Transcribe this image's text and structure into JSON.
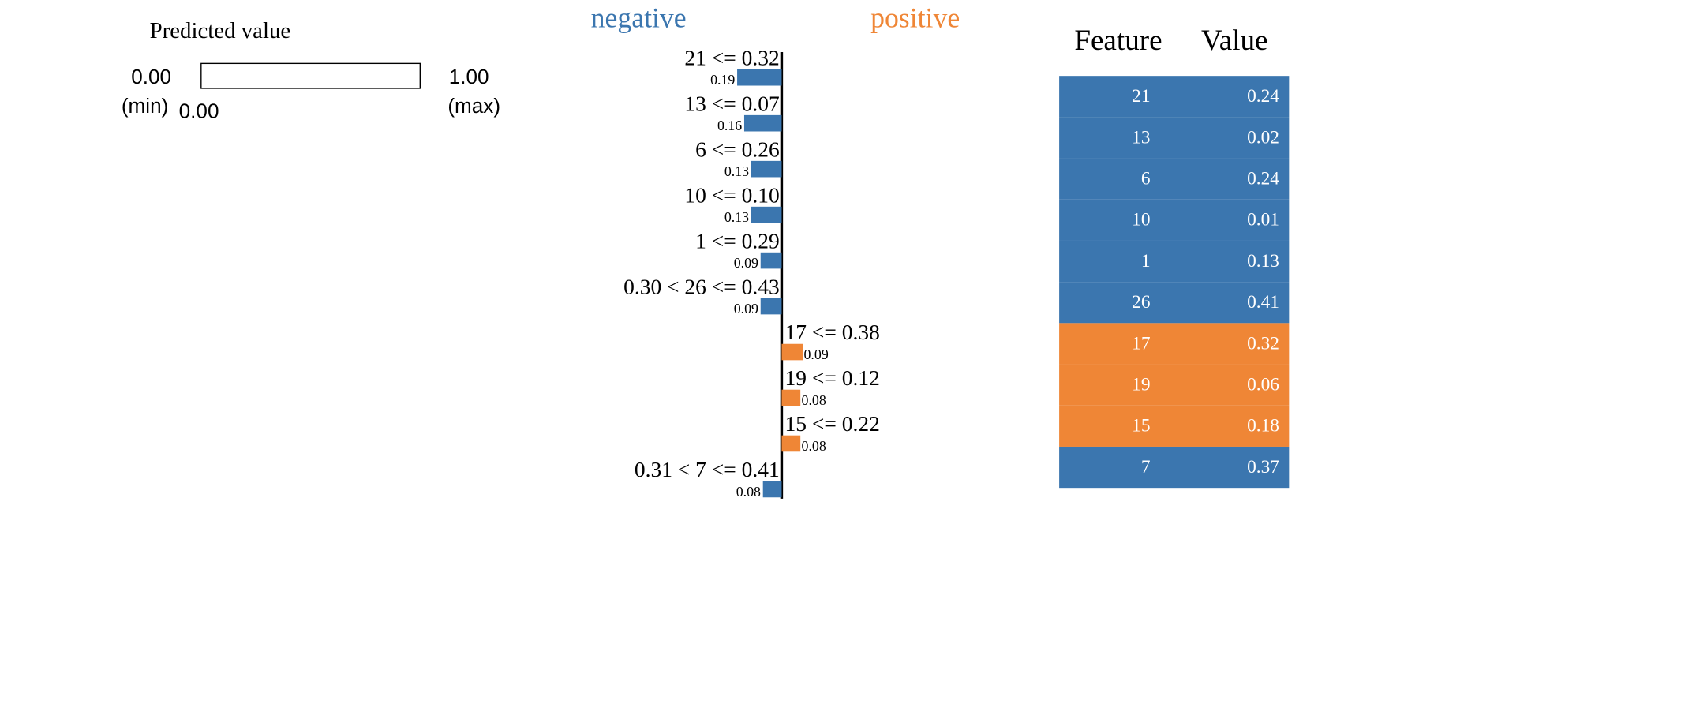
{
  "predicted": {
    "title": "Predicted value",
    "min_value": "0.00",
    "min_label": "(min)",
    "max_value": "1.00",
    "max_label": "(max)",
    "current_value": "0.00",
    "fraction": 0.0
  },
  "legend": {
    "negative_label": "negative",
    "positive_label": "positive",
    "negative_color": "#3b76af",
    "positive_color": "#ef8636"
  },
  "table": {
    "headers": [
      "Feature",
      "Value"
    ],
    "rows": [
      {
        "feature": "21",
        "value": "0.24",
        "sign": "negative"
      },
      {
        "feature": "13",
        "value": "0.02",
        "sign": "negative"
      },
      {
        "feature": "6",
        "value": "0.24",
        "sign": "negative"
      },
      {
        "feature": "10",
        "value": "0.01",
        "sign": "negative"
      },
      {
        "feature": "1",
        "value": "0.13",
        "sign": "negative"
      },
      {
        "feature": "26",
        "value": "0.41",
        "sign": "negative"
      },
      {
        "feature": "17",
        "value": "0.32",
        "sign": "positive"
      },
      {
        "feature": "19",
        "value": "0.06",
        "sign": "positive"
      },
      {
        "feature": "15",
        "value": "0.18",
        "sign": "positive"
      },
      {
        "feature": "7",
        "value": "0.37",
        "sign": "negative"
      }
    ]
  },
  "chart_data": {
    "type": "bar",
    "orientation": "horizontal",
    "categories": [
      "21 <= 0.32",
      "13 <= 0.07",
      "6 <= 0.26",
      "10 <= 0.10",
      "1 <= 0.29",
      "0.30 < 26 <= 0.43",
      "17 <= 0.38",
      "19 <= 0.12",
      "15 <= 0.22",
      "0.31 < 7 <= 0.41"
    ],
    "series": [
      {
        "values": [
          -0.19,
          -0.16,
          -0.13,
          -0.13,
          -0.09,
          -0.09,
          0.09,
          0.08,
          0.08,
          -0.08
        ]
      }
    ],
    "value_labels": [
      "0.19",
      "0.16",
      "0.13",
      "0.13",
      "0.09",
      "0.09",
      "0.09",
      "0.08",
      "0.08",
      "0.08"
    ],
    "negative_color": "#3b76af",
    "positive_color": "#ef8636"
  }
}
